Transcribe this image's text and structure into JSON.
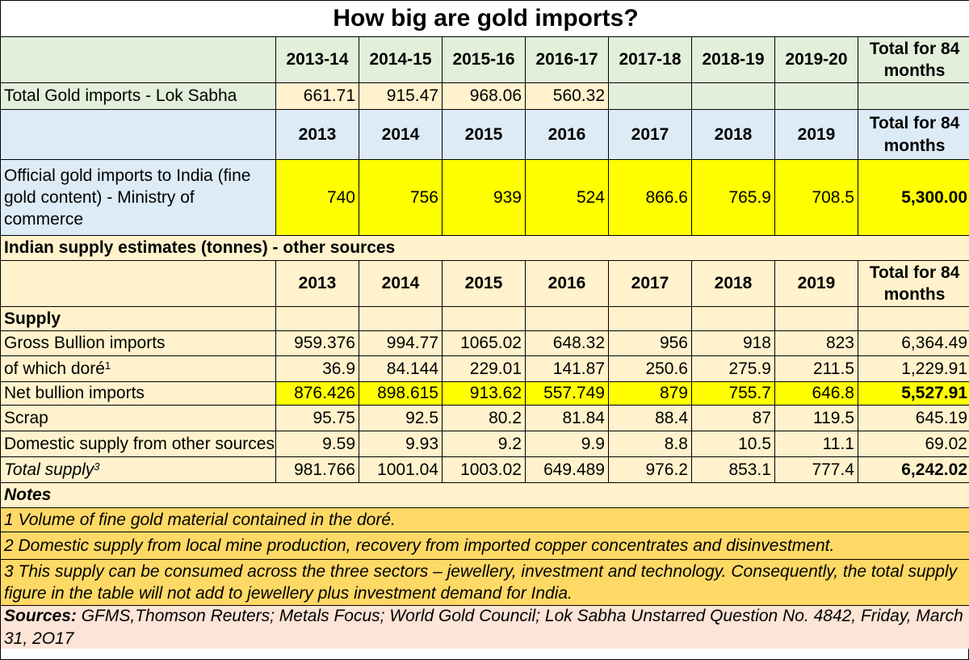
{
  "title": "How big are gold imports?",
  "lok_sabha": {
    "headers": [
      "2013-14",
      "2014-15",
      "2015-16",
      "2016-17",
      "2017-18",
      "2018-19",
      "2019-20"
    ],
    "total_header": "Total for 84 months",
    "row_label": "Total Gold imports - Lok Sabha",
    "values": [
      "661.71",
      "915.47",
      "968.06",
      "560.32",
      "",
      "",
      ""
    ],
    "total": ""
  },
  "ministry": {
    "headers": [
      "2013",
      "2014",
      "2015",
      "2016",
      "2017",
      "2018",
      "2019"
    ],
    "total_header": "Total for 84 months",
    "row_label": "Official gold imports to India (fine gold content) - Ministry of commerce",
    "values": [
      "740",
      "756",
      "939",
      "524",
      "866.6",
      "765.9",
      "708.5"
    ],
    "total": "5,300.00"
  },
  "other_sources": {
    "section_title": "Indian supply estimates (tonnes) - other sources",
    "headers": [
      "2013",
      "2014",
      "2015",
      "2016",
      "2017",
      "2018",
      "2019"
    ],
    "total_header": "Total for 84 months",
    "supply_label": "Supply",
    "rows": [
      {
        "label": "Gross Bullion imports",
        "sup": "",
        "values": [
          "959.376",
          "994.77",
          "1065.02",
          "648.32",
          "956",
          "918",
          "823"
        ],
        "total": "6,364.49"
      },
      {
        "label": "of which doré",
        "sup": "1",
        "values": [
          "36.9",
          "84.144",
          "229.01",
          "141.87",
          "250.6",
          "275.9",
          "211.5"
        ],
        "total": "1,229.91"
      },
      {
        "label": "Net bullion imports",
        "sup": "",
        "values": [
          "876.426",
          "898.615",
          "913.62",
          "557.749",
          "879",
          "755.7",
          "646.8"
        ],
        "total": "5,527.91"
      },
      {
        "label": "Scrap",
        "sup": "",
        "values": [
          "95.75",
          "92.5",
          "80.2",
          "81.84",
          "88.4",
          "87",
          "119.5"
        ],
        "total": "645.19"
      },
      {
        "label": "Domestic supply from other sources",
        "sup": "",
        "values": [
          "9.59",
          "9.93",
          "9.2",
          "9.9",
          "8.8",
          "10.5",
          "11.1"
        ],
        "total": "69.02"
      },
      {
        "label": "Total supply",
        "sup": "3",
        "values": [
          "981.766",
          "1001.04",
          "1003.02",
          "649.489",
          "976.2",
          "853.1",
          "777.4"
        ],
        "total": "6,242.02"
      }
    ]
  },
  "notes": {
    "title": "Notes",
    "items": [
      "1 Volume of fine gold material contained in the doré.",
      "2 Domestic supply from local mine production, recovery from imported copper concentrates and disinvestment.",
      "3 This supply can be consumed across the three sectors – jewellery, investment and technology. Consequently, the total supply figure in the table will not add to jewellery plus investment demand for India."
    ]
  },
  "sources": {
    "label": "Sources:",
    "text": "GFMS,Thomson Reuters; Metals Focus; World Gold Council; Lok Sabha Unstarred Question No.  4842, Friday, March 31, 2O17"
  },
  "colors": {
    "green": "#e2efda",
    "blue": "#ddebf7",
    "peach": "#fff2cc",
    "highlight_yellow": "#ffff00",
    "notes_orange": "#ffd966",
    "sources_pink": "#fce4d6"
  }
}
